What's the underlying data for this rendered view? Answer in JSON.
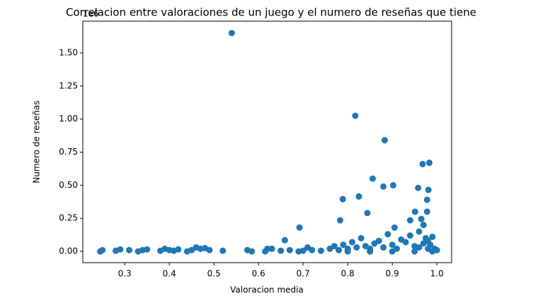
{
  "chart_data": {
    "type": "scatter",
    "title": "Correlacion entre valoraciones de un juego y el numero de reseñas que tiene",
    "xlabel": "Valoracion media",
    "ylabel": "Numero de reseñas",
    "y_offset_label": "1e6",
    "color": "#1f77b4",
    "xlim": [
      0.206,
      1.033
    ],
    "ylim": [
      -0.085,
      1.74
    ],
    "xticks": [
      0.3,
      0.4,
      0.5,
      0.6,
      0.7,
      0.8,
      0.9,
      {
        "value": 1,
        "label": "1.0"
      }
    ],
    "yticks": [
      {
        "value": 0,
        "label": "0.00"
      },
      {
        "value": 0.25,
        "label": "0.25"
      },
      {
        "value": 0.5,
        "label": "0.50"
      },
      {
        "value": 0.75,
        "label": "0.75"
      },
      {
        "value": 1,
        "label": "1.00"
      },
      {
        "value": 1.25,
        "label": "1.25"
      },
      {
        "value": 1.5,
        "label": "1.50"
      }
    ],
    "x": [
      0.54,
      0.817,
      0.883,
      0.983,
      0.968,
      0.856,
      0.902,
      0.88,
      0.958,
      0.981,
      0.825,
      0.789,
      0.978,
      0.844,
      0.951,
      0.978,
      0.783,
      0.692,
      0.905,
      0.94,
      0.965,
      0.659,
      0.245,
      0.25,
      0.28,
      0.29,
      0.31,
      0.33,
      0.34,
      0.35,
      0.38,
      0.39,
      0.4,
      0.41,
      0.42,
      0.44,
      0.45,
      0.46,
      0.47,
      0.48,
      0.49,
      0.52,
      0.575,
      0.585,
      0.615,
      0.62,
      0.63,
      0.65,
      0.67,
      0.69,
      0.7,
      0.71,
      0.72,
      0.74,
      0.76,
      0.77,
      0.78,
      0.79,
      0.8,
      0.81,
      0.82,
      0.83,
      0.84,
      0.85,
      0.86,
      0.87,
      0.88,
      0.89,
      0.9,
      0.91,
      0.92,
      0.93,
      0.94,
      0.95,
      0.96,
      0.97,
      0.975,
      0.98,
      0.985,
      0.99,
      0.995,
      1.0,
      0.96,
      0.97,
      0.98,
      0.8,
      0.85,
      0.9,
      0.95,
      0.99
    ],
    "y": [
      1.65,
      1.025,
      0.84,
      0.67,
      0.66,
      0.55,
      0.5,
      0.49,
      0.48,
      0.465,
      0.415,
      0.395,
      0.39,
      0.29,
      0.3,
      0.3,
      0.235,
      0.18,
      0.18,
      0.235,
      0.245,
      0.085,
      0,
      0.01,
      0.005,
      0.015,
      0.01,
      0,
      0.01,
      0.015,
      0.005,
      0.02,
      0.01,
      0.005,
      0.015,
      0,
      0.01,
      0.03,
      0.02,
      0.025,
      0.01,
      0.005,
      0.01,
      0,
      0,
      0.02,
      0.02,
      0.005,
      0.01,
      0,
      0.005,
      0.03,
      0.01,
      0.005,
      0.02,
      0.04,
      0.01,
      0.05,
      0.02,
      0.07,
      0.03,
      0.1,
      0.04,
      0.02,
      0.06,
      0.08,
      0.03,
      0.13,
      0.05,
      0.02,
      0.09,
      0.07,
      0.12,
      0.04,
      0.15,
      0.2,
      0.1,
      0.08,
      0.05,
      0.11,
      0.02,
      0.01,
      0.03,
      0.06,
      0.02,
      0,
      0,
      0,
      0,
      0
    ]
  }
}
